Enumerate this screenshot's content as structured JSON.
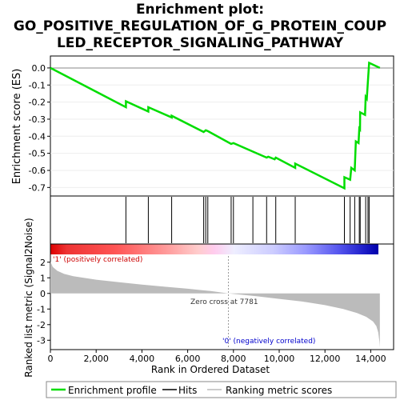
{
  "title_lines": [
    "Enrichment plot:",
    "GO_POSITIVE_REGULATION_OF_G_PROTEIN_COUP",
    "LED_RECEPTOR_SIGNALING_PATHWAY"
  ],
  "colors": {
    "es_line": "#00dd00",
    "hit": "#000000",
    "metric_fill": "#bbbbbb",
    "pos_label": "#cc0000",
    "neg_label": "#0000cc"
  },
  "labels": {
    "pos_corr": "'1' (positively correlated)",
    "neg_corr": "'0' (negatively correlated)",
    "zero_cross": "Zero cross at 7781"
  },
  "legend": {
    "items": [
      {
        "label": "Enrichment profile",
        "kind": "line",
        "color": "#00dd00"
      },
      {
        "label": "Hits",
        "kind": "line",
        "color": "#000000"
      },
      {
        "label": "Ranking metric scores",
        "kind": "line",
        "color": "#bbbbbb"
      }
    ]
  },
  "chart_data": [
    {
      "type": "line",
      "name": "enrichment-profile",
      "ylabel": "Enrichment score (ES)",
      "xlim": [
        0,
        15000
      ],
      "ylim": [
        -0.75,
        0.07
      ],
      "yticks": [
        0.0,
        -0.1,
        -0.2,
        -0.3,
        -0.4,
        -0.5,
        -0.6,
        -0.7
      ],
      "ytick_labels": [
        "0.0",
        "-0.1",
        "-0.2",
        "-0.3",
        "-0.4",
        "-0.5",
        "-0.6",
        "-0.7"
      ],
      "x": [
        0,
        3300,
        3300,
        4280,
        4280,
        5300,
        5300,
        6700,
        6790,
        6880,
        7900,
        8000,
        8850,
        9450,
        9520,
        9800,
        9850,
        10700,
        10700,
        12850,
        12850,
        13100,
        13150,
        13300,
        13350,
        13470,
        13500,
        13530,
        13540,
        13750,
        13780,
        13830,
        13880,
        13930,
        14400
      ],
      "y": [
        0.0,
        -0.23,
        -0.195,
        -0.255,
        -0.23,
        -0.29,
        -0.28,
        -0.375,
        -0.365,
        -0.37,
        -0.445,
        -0.44,
        -0.49,
        -0.525,
        -0.52,
        -0.535,
        -0.525,
        -0.585,
        -0.56,
        -0.705,
        -0.64,
        -0.655,
        -0.585,
        -0.6,
        -0.43,
        -0.44,
        -0.355,
        -0.36,
        -0.26,
        -0.275,
        -0.17,
        -0.18,
        -0.07,
        0.03,
        0.0
      ]
    },
    {
      "type": "bar",
      "name": "hits",
      "x": [
        3300,
        4280,
        5300,
        6700,
        6790,
        6880,
        7900,
        8000,
        8850,
        9450,
        9850,
        10700,
        12850,
        13100,
        13300,
        13500,
        13540,
        13780,
        13880,
        13930
      ]
    },
    {
      "type": "area",
      "name": "ranking-metric",
      "xlabel": "Rank in Ordered Dataset",
      "ylabel": "Ranked list metric (Signal2Noise)",
      "xlim": [
        0,
        15000
      ],
      "ylim": [
        -3.6,
        2.5
      ],
      "xticks": [
        0,
        2000,
        4000,
        6000,
        8000,
        10000,
        12000,
        14000
      ],
      "xtick_labels": [
        "0",
        "2,000",
        "4,000",
        "6,000",
        "8,000",
        "10,000",
        "12,000",
        "14,000"
      ],
      "yticks": [
        2,
        1,
        0,
        -1,
        -2,
        -3
      ],
      "ytick_labels": [
        "2",
        "1",
        "0",
        "-1",
        "-2",
        "-3"
      ],
      "zero_cross": 7781,
      "x": [
        0,
        100,
        300,
        600,
        1000,
        2000,
        3000,
        4000,
        5000,
        6000,
        7000,
        7781,
        9000,
        10000,
        11000,
        12000,
        12800,
        13400,
        13800,
        14100,
        14250,
        14330,
        14380,
        14400
      ],
      "y": [
        2.05,
        1.7,
        1.45,
        1.25,
        1.1,
        0.88,
        0.72,
        0.57,
        0.43,
        0.3,
        0.15,
        0.0,
        -0.18,
        -0.35,
        -0.52,
        -0.75,
        -1.0,
        -1.25,
        -1.5,
        -1.8,
        -2.1,
        -2.5,
        -3.1,
        -3.45
      ]
    }
  ]
}
